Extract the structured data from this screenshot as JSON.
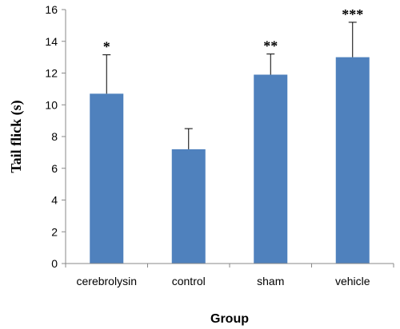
{
  "chart_data": {
    "type": "bar",
    "categories": [
      "cerebrolysin",
      "control",
      "sham",
      "vehicle"
    ],
    "values": [
      10.7,
      7.2,
      11.9,
      13.0
    ],
    "error_upper": [
      13.15,
      8.5,
      13.2,
      15.2
    ],
    "significance": [
      "*",
      "",
      "**",
      "***"
    ],
    "xlabel": "Group",
    "ylabel": "Tail flick (s)",
    "ylim": [
      0,
      16
    ],
    "yticks": [
      0,
      2,
      4,
      6,
      8,
      10,
      12,
      14,
      16
    ],
    "ytick_labels": [
      "0",
      "2",
      "4",
      "6",
      "8",
      "10",
      "12",
      "14",
      "16"
    ],
    "grid": false,
    "legend": "none",
    "bar_color": "#4f81bd",
    "error_color": "#000000"
  }
}
